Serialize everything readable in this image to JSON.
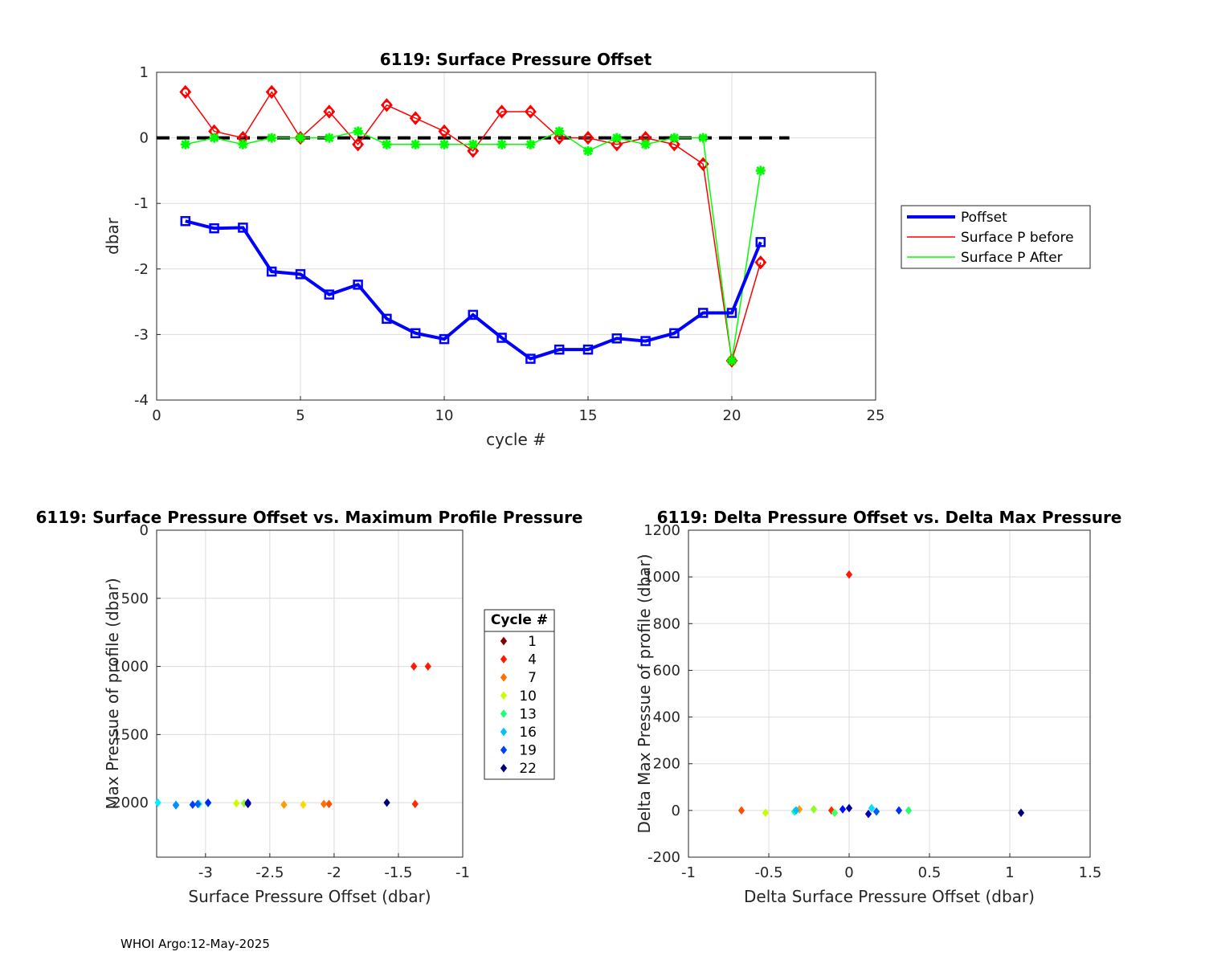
{
  "chart_data": [
    {
      "type": "line",
      "title": "6119: Surface Pressure Offset",
      "xlabel": "cycle #",
      "ylabel": "dbar",
      "xlim": [
        0,
        25
      ],
      "ylim": [
        -4,
        1
      ],
      "xticks": [
        "0",
        "5",
        "10",
        "15",
        "20",
        "25"
      ],
      "yticks": [
        "1",
        "0",
        "-1",
        "-2",
        "-3",
        "-4"
      ],
      "grid": true,
      "legend_position": "right",
      "zero_line": {
        "y": 0,
        "x": [
          0,
          22
        ],
        "color": "#000000",
        "style": "dashed"
      },
      "x": [
        1,
        2,
        3,
        4,
        5,
        6,
        7,
        8,
        9,
        10,
        11,
        12,
        13,
        14,
        15,
        16,
        17,
        18,
        19,
        20,
        21
      ],
      "series": [
        {
          "name": "Poffset",
          "color": "#0000ff",
          "marker": "square",
          "values": [
            -1.27,
            -1.38,
            -1.37,
            -2.04,
            -2.08,
            -2.39,
            -2.24,
            -2.76,
            -2.98,
            -3.07,
            -2.7,
            -3.05,
            -3.37,
            -3.23,
            -3.23,
            -3.06,
            -3.1,
            -2.98,
            -2.67,
            -2.67,
            -1.59
          ]
        },
        {
          "name": "Surface P before",
          "color": "#ff0000",
          "marker": "circle",
          "values": [
            0.7,
            0.1,
            0.0,
            0.7,
            0.0,
            0.4,
            -0.1,
            0.5,
            0.3,
            0.1,
            -0.2,
            0.4,
            0.4,
            0.0,
            0.0,
            -0.1,
            0.0,
            -0.1,
            -0.4,
            -3.4,
            -1.9
          ]
        },
        {
          "name": "Surface P After",
          "color": "#00ff00",
          "marker": "star",
          "values": [
            -0.1,
            0.0,
            -0.1,
            0.0,
            0.0,
            0.0,
            0.1,
            -0.1,
            -0.1,
            -0.1,
            -0.1,
            -0.1,
            -0.1,
            0.1,
            -0.2,
            0.0,
            -0.1,
            0.0,
            0.0,
            -3.4,
            -0.5
          ]
        }
      ]
    },
    {
      "type": "scatter",
      "title": "6119: Surface Pressure Offset vs. Maximum Profile Pressure",
      "xlabel": "Surface Pressure Offset (dbar)",
      "ylabel": "Max Pressue of profile (dbar)",
      "xlim": [
        -3.38,
        -1
      ],
      "ylim": [
        2400,
        0
      ],
      "y_reversed": true,
      "xticks": [
        "-3",
        "-2.5",
        "-2",
        "-1.5",
        "-1"
      ],
      "yticks": [
        "0",
        "500",
        "1000",
        "1500",
        "2000"
      ],
      "grid": true,
      "legend": {
        "title": "Cycle #",
        "entries": [
          "1",
          "4",
          "7",
          "10",
          "13",
          "16",
          "19",
          "22"
        ],
        "colors": [
          "#800000",
          "#ff1a00",
          "#ff7000",
          "#c8ff00",
          "#20ff70",
          "#00c0ff",
          "#0040ff",
          "#00007a"
        ]
      },
      "points": [
        {
          "x": -1.27,
          "y": 1000,
          "color": "#ff1a00"
        },
        {
          "x": -1.38,
          "y": 1000,
          "color": "#ff1a00"
        },
        {
          "x": -1.37,
          "y": 2010,
          "color": "#ff2a00"
        },
        {
          "x": -2.04,
          "y": 2010,
          "color": "#ff5000"
        },
        {
          "x": -2.08,
          "y": 2010,
          "color": "#ff7000"
        },
        {
          "x": -2.39,
          "y": 2015,
          "color": "#ff9a00"
        },
        {
          "x": -2.24,
          "y": 2015,
          "color": "#ffd800"
        },
        {
          "x": -2.76,
          "y": 2005,
          "color": "#c8ff00"
        },
        {
          "x": -2.7,
          "y": 2005,
          "color": "#8cff20"
        },
        {
          "x": -2.98,
          "y": 2005,
          "color": "#20ff70"
        },
        {
          "x": -3.05,
          "y": 2010,
          "color": "#00ffb0"
        },
        {
          "x": -3.37,
          "y": 2000,
          "color": "#00f0ff"
        },
        {
          "x": -3.23,
          "y": 2015,
          "color": "#00c0ff"
        },
        {
          "x": -3.23,
          "y": 2020,
          "color": "#0090ff"
        },
        {
          "x": -3.06,
          "y": 2010,
          "color": "#0060ff"
        },
        {
          "x": -3.1,
          "y": 2015,
          "color": "#0040ff"
        },
        {
          "x": -2.98,
          "y": 2000,
          "color": "#0020ff"
        },
        {
          "x": -2.67,
          "y": 2000,
          "color": "#0000e0"
        },
        {
          "x": -2.67,
          "y": 2010,
          "color": "#0000a0"
        },
        {
          "x": -1.59,
          "y": 2000,
          "color": "#00007a"
        }
      ]
    },
    {
      "type": "scatter",
      "title": "6119: Delta Pressure Offset vs. Delta Max Pressure",
      "xlabel": "Delta Surface Pressure Offset (dbar)",
      "ylabel": "Delta Max Pressue of profile (dbar)",
      "xlim": [
        -1,
        1.5
      ],
      "ylim": [
        -200,
        1200
      ],
      "xticks": [
        "-1",
        "-0.5",
        "0",
        "0.5",
        "1",
        "1.5"
      ],
      "yticks": [
        "1200",
        "1000",
        "800",
        "600",
        "400",
        "200",
        "0",
        "-200"
      ],
      "grid": true,
      "points": [
        {
          "x": 0.0,
          "y": 1010,
          "color": "#ff1a00"
        },
        {
          "x": -0.11,
          "y": 0,
          "color": "#ff2a00"
        },
        {
          "x": -0.67,
          "y": 0,
          "color": "#ff5000"
        },
        {
          "x": -0.31,
          "y": 5,
          "color": "#ff9a00"
        },
        {
          "x": -0.52,
          "y": -10,
          "color": "#c8ff00"
        },
        {
          "x": -0.22,
          "y": 5,
          "color": "#8cff20"
        },
        {
          "x": -0.09,
          "y": -10,
          "color": "#40ff60"
        },
        {
          "x": 0.37,
          "y": 0,
          "color": "#20ff70"
        },
        {
          "x": -0.34,
          "y": -5,
          "color": "#00ffb0"
        },
        {
          "x": 0.14,
          "y": 10,
          "color": "#00e0ff"
        },
        {
          "x": -0.33,
          "y": 0,
          "color": "#00c0ff"
        },
        {
          "x": 0.17,
          "y": -5,
          "color": "#0060ff"
        },
        {
          "x": 0.31,
          "y": 0,
          "color": "#0030ff"
        },
        {
          "x": -0.04,
          "y": 5,
          "color": "#0010ff"
        },
        {
          "x": 0.12,
          "y": -15,
          "color": "#0000c0"
        },
        {
          "x": 0.0,
          "y": 10,
          "color": "#0000a0"
        },
        {
          "x": 1.07,
          "y": -10,
          "color": "#00007a"
        }
      ]
    }
  ],
  "footer": "WHOI Argo:12-May-2025"
}
